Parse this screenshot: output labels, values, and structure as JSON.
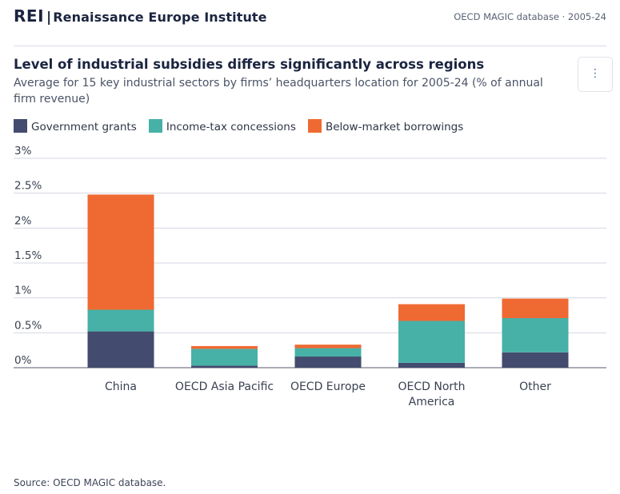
{
  "header": {
    "logo": "REI",
    "separator": "|",
    "org_name": "Renaissance Europe Institute",
    "meta": "OECD MAGIC database · 2005-24"
  },
  "title": "Level of industrial subsidies differs significantly across regions",
  "subtitle": "Average for 15 key industrial sectors by firms’ headquarters location for 2005-24 (% of annual firm revenue)",
  "menu": {
    "icon": "vertical-ellipsis-icon",
    "glyph": "⋮"
  },
  "colors": {
    "government_grants": "#434b6e",
    "income_tax": "#47b1a7",
    "below_market": "#ef6a32",
    "grid": "#d3d7e0",
    "axis": "#555b6b"
  },
  "chart_data": {
    "type": "bar",
    "stacked": true,
    "title": "Level of industrial subsidies differs significantly across regions",
    "subtitle": "Average for 15 key industrial sectors by firms’ headquarters location for 2005-24 (% of annual firm revenue)",
    "categories": [
      "China",
      "OECD Asia Pacific",
      "OECD Europe",
      "OECD North America",
      "Other"
    ],
    "category_lines": [
      [
        "China"
      ],
      [
        "OECD Asia Pacific"
      ],
      [
        "OECD Europe"
      ],
      [
        "OECD North",
        "America"
      ],
      [
        "Other"
      ]
    ],
    "series": [
      {
        "name": "Government grants",
        "color": "#434b6e",
        "values": [
          0.52,
          0.03,
          0.16,
          0.07,
          0.22
        ]
      },
      {
        "name": "Income-tax concessions",
        "color": "#47b1a7",
        "values": [
          0.31,
          0.24,
          0.12,
          0.6,
          0.49
        ]
      },
      {
        "name": "Below-market borrowings",
        "color": "#ef6a32",
        "values": [
          1.65,
          0.04,
          0.05,
          0.24,
          0.28
        ]
      }
    ],
    "ylim": [
      0,
      3
    ],
    "yticks": [
      0,
      0.5,
      1,
      1.5,
      2,
      2.5,
      3
    ],
    "ytick_labels": [
      "0%",
      "0.5%",
      "1%",
      "1.5%",
      "2%",
      "2.5%",
      "3%"
    ],
    "xlabel": "",
    "ylabel": "",
    "grid": true,
    "legend": "top-left"
  },
  "source": "Source: OECD MAGIC database."
}
